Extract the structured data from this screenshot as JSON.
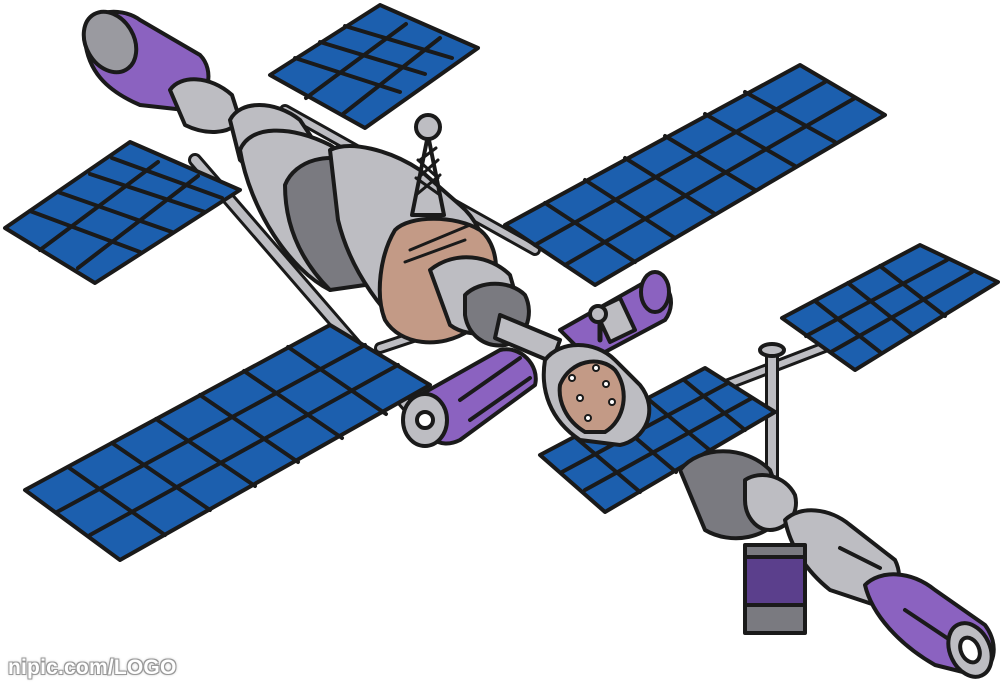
{
  "watermark": {
    "text": "nipic.com/LOGO"
  },
  "colors": {
    "outline": "#1a1a1a",
    "panel_blue": "#1c5fae",
    "hull_gray": "#bdbdc2",
    "hull_dark": "#7a7a80",
    "hull_light": "#dcdce0",
    "module_purple": "#8b62c0",
    "module_purple_dark": "#5b3f8c",
    "copper": "#c39a86"
  },
  "icons": {
    "solar_panel": "solar-panel-icon",
    "antenna": "antenna-icon"
  }
}
